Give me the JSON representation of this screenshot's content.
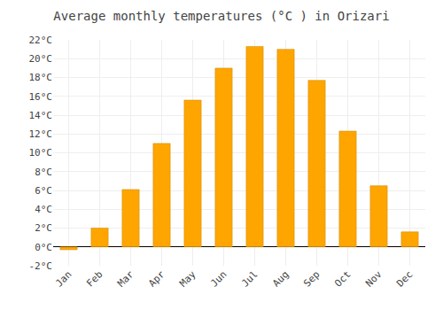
{
  "chart_data": {
    "type": "bar",
    "title": "Average monthly temperatures (°C ) in Orizari",
    "categories": [
      "Jan",
      "Feb",
      "Mar",
      "Apr",
      "May",
      "Jun",
      "Jul",
      "Aug",
      "Sep",
      "Oct",
      "Nov",
      "Dec"
    ],
    "values": [
      -0.3,
      2.0,
      6.1,
      11.0,
      15.6,
      19.0,
      21.3,
      21.0,
      17.7,
      12.3,
      6.5,
      1.6
    ],
    "color": "#FFA500",
    "ylim": [
      -2,
      22
    ],
    "yticks": [
      {
        "value": -2,
        "label": "-2°C"
      },
      {
        "value": 0,
        "label": "0°C"
      },
      {
        "value": 2,
        "label": "2°C"
      },
      {
        "value": 4,
        "label": "4°C"
      },
      {
        "value": 6,
        "label": "6°C"
      },
      {
        "value": 8,
        "label": "8°C"
      },
      {
        "value": 10,
        "label": "10°C"
      },
      {
        "value": 12,
        "label": "12°C"
      },
      {
        "value": 14,
        "label": "14°C"
      },
      {
        "value": 16,
        "label": "16°C"
      },
      {
        "value": 18,
        "label": "18°C"
      },
      {
        "value": 20,
        "label": "20°C"
      },
      {
        "value": 22,
        "label": "22°C"
      }
    ],
    "grid": true
  }
}
